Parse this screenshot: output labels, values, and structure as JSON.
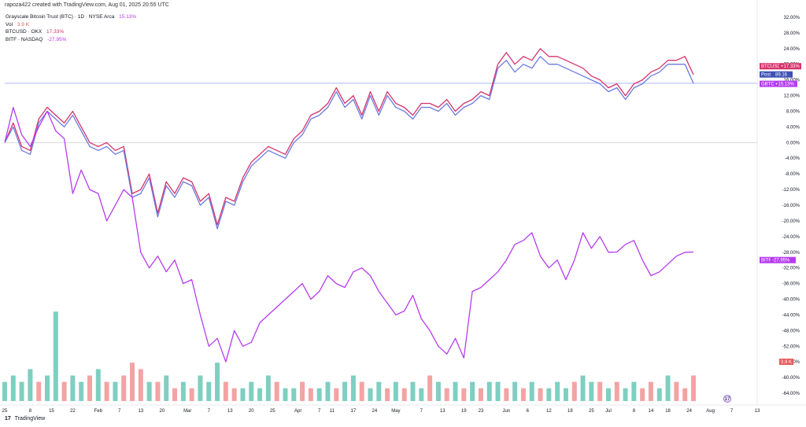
{
  "header": {
    "caption": "rapoza422 created with TradingView.com, Aug 01, 2025 20:55 UTC"
  },
  "legend": {
    "main_name": "Grayscale Bitcoin Trust (BTC) · 1D · NYSE Arca",
    "main_value": "15.13%",
    "vol_name": "Vol",
    "vol_value": "3.9 K",
    "btc_name": "BTCUSD · OKX",
    "btc_value": "17.33%",
    "bitf_name": "BITF · NASDAQ",
    "bitf_value": "-27.95%"
  },
  "badges": {
    "btcusd_label": "BTCUSD",
    "btcusd_value": "+17.33%",
    "post_label": "Post",
    "post_value": "89.16",
    "gbtc_label": "GBTC",
    "gbtc_value": "+15.13%",
    "bitf_label": "BITF",
    "bitf_value": "-27.95%",
    "vol_value": "3.9 K"
  },
  "branding": {
    "text": "TradingView",
    "mark": "17"
  },
  "colors": {
    "btcusd": "#d6336c",
    "gbtc": "#6c7be0",
    "bitf": "#b63bf0",
    "vol_up": "#7fcfc1",
    "vol_down": "#f4a3a3",
    "post_line": "#7e8cff"
  },
  "chart_data": {
    "type": "line",
    "y_axis_ticks": [
      "32.00%",
      "28.00%",
      "24.00%",
      "20.00%",
      "16.00%",
      "12.00%",
      "8.00%",
      "4.00%",
      "0.00%",
      "-4.00%",
      "-8.00%",
      "-12.00%",
      "-16.00%",
      "-20.00%",
      "-24.00%",
      "-28.00%",
      "-32.00%",
      "-36.00%",
      "-40.00%",
      "-44.00%",
      "-48.00%",
      "-52.00%",
      "-56.00%",
      "-60.00%",
      "-64.00%"
    ],
    "y_axis_values": [
      32,
      28,
      24,
      20,
      16,
      12,
      8,
      4,
      0,
      -4,
      -8,
      -12,
      -16,
      -20,
      -24,
      -28,
      -32,
      -36,
      -40,
      -44,
      -48,
      -52,
      -56,
      -60,
      -64
    ],
    "x_axis_ticks": [
      "25",
      "8",
      "15",
      "22",
      "Feb",
      "7",
      "13",
      "20",
      "Mar",
      "7",
      "13",
      "20",
      "25",
      "Apr",
      "7",
      "11",
      "17",
      "24",
      "May",
      "7",
      "13",
      "19",
      "23",
      "Jun",
      "6",
      "12",
      "18",
      "25",
      "Jul",
      "8",
      "14",
      "18",
      "24",
      "Aug",
      "7",
      "13"
    ],
    "ylim": [
      -66,
      34
    ],
    "x_index_range": [
      0,
      162
    ],
    "x_tick_index": [
      0,
      6,
      11,
      16,
      22,
      27,
      32,
      37,
      43,
      48,
      53,
      58,
      63,
      69,
      74,
      77,
      82,
      87,
      92,
      98,
      103,
      108,
      112,
      118,
      123,
      128,
      133,
      138,
      142,
      148,
      152,
      156,
      161,
      166,
      171,
      177
    ],
    "series": [
      {
        "name": "BTCUSD",
        "x": [
          0,
          2,
          4,
          6,
          8,
          10,
          12,
          14,
          16,
          18,
          20,
          22,
          24,
          26,
          28,
          30,
          32,
          34,
          36,
          38,
          40,
          42,
          44,
          46,
          48,
          50,
          52,
          54,
          56,
          58,
          60,
          62,
          64,
          66,
          68,
          70,
          72,
          74,
          76,
          78,
          80,
          82,
          84,
          86,
          88,
          90,
          92,
          94,
          96,
          98,
          100,
          102,
          104,
          106,
          108,
          110,
          112,
          114,
          116,
          118,
          120,
          122,
          124,
          126,
          128,
          130,
          132,
          134,
          136,
          138,
          140,
          142,
          144,
          146,
          148,
          150,
          152,
          154,
          156,
          158,
          160,
          162
        ],
        "values": [
          0,
          5,
          -1,
          -2,
          6,
          9,
          7,
          5,
          8,
          4,
          0,
          -1,
          0,
          -2,
          -1,
          -13,
          -12,
          -8,
          -18,
          -10,
          -13,
          -9,
          -10,
          -15,
          -13,
          -21,
          -14,
          -15,
          -9,
          -5,
          -3,
          -1,
          -2,
          -3,
          1,
          3,
          7,
          8,
          10,
          14,
          10,
          12,
          7,
          13,
          8,
          13,
          10,
          9,
          7,
          10,
          10,
          9,
          11,
          8,
          10,
          11,
          13,
          12,
          20,
          23,
          20,
          22,
          21,
          24,
          22,
          22,
          21,
          20,
          19,
          17,
          16,
          14,
          15,
          12,
          15,
          16,
          18,
          19,
          21,
          21,
          22,
          17.33
        ]
      },
      {
        "name": "GBTC",
        "x": [
          0,
          2,
          4,
          6,
          8,
          10,
          12,
          14,
          16,
          18,
          20,
          22,
          24,
          26,
          28,
          30,
          32,
          34,
          36,
          38,
          40,
          42,
          44,
          46,
          48,
          50,
          52,
          54,
          56,
          58,
          60,
          62,
          64,
          66,
          68,
          70,
          72,
          74,
          76,
          78,
          80,
          82,
          84,
          86,
          88,
          90,
          92,
          94,
          96,
          98,
          100,
          102,
          104,
          106,
          108,
          110,
          112,
          114,
          116,
          118,
          120,
          122,
          124,
          126,
          128,
          130,
          132,
          134,
          136,
          138,
          140,
          142,
          144,
          146,
          148,
          150,
          152,
          154,
          156,
          158,
          160,
          162
        ],
        "values": [
          0,
          4,
          -2,
          -3,
          5,
          8,
          6,
          4,
          7,
          3,
          -1,
          -2,
          -1,
          -3,
          -2,
          -14,
          -13,
          -9,
          -19,
          -11,
          -14,
          -10,
          -11,
          -16,
          -14,
          -22,
          -15,
          -16,
          -10,
          -6,
          -4,
          -2,
          -3,
          -4,
          0,
          2,
          6,
          7,
          9,
          13,
          9,
          11,
          6,
          12,
          7,
          12,
          9,
          8,
          6,
          9,
          9,
          8,
          10,
          7,
          9,
          10,
          12,
          11,
          19,
          21,
          18,
          20,
          19,
          22,
          20,
          20,
          19,
          18,
          17,
          16,
          15,
          13,
          14,
          11,
          14,
          15,
          17,
          18,
          20,
          20,
          20,
          15.13
        ]
      },
      {
        "name": "BITF",
        "x": [
          0,
          2,
          4,
          6,
          8,
          10,
          12,
          14,
          16,
          18,
          20,
          22,
          24,
          26,
          28,
          30,
          32,
          34,
          36,
          38,
          40,
          42,
          44,
          46,
          48,
          50,
          52,
          54,
          56,
          58,
          60,
          62,
          64,
          66,
          68,
          70,
          72,
          74,
          76,
          78,
          80,
          82,
          84,
          86,
          88,
          90,
          92,
          94,
          96,
          98,
          100,
          102,
          104,
          106,
          108,
          110,
          112,
          114,
          116,
          118,
          120,
          122,
          124,
          126,
          128,
          130,
          132,
          134,
          136,
          138,
          140,
          142,
          144,
          146,
          148,
          150,
          152,
          154,
          156,
          158,
          160,
          162
        ],
        "values": [
          0,
          9,
          2,
          -1,
          4,
          8,
          3,
          1,
          -13,
          -7,
          -12,
          -13,
          -20,
          -16,
          -12,
          -14,
          -28,
          -32,
          -29,
          -33,
          -30,
          -36,
          -35,
          -44,
          -52,
          -50,
          -56,
          -48,
          -52,
          -51,
          -46,
          -44,
          -42,
          -40,
          -38,
          -36,
          -40,
          -38,
          -34,
          -36,
          -37,
          -33,
          -32,
          -34,
          -38,
          -41,
          -44,
          -43,
          -39,
          -45,
          -48,
          -52,
          -54,
          -50,
          -55,
          -38,
          -37,
          -35,
          -33,
          -30,
          -26,
          -25,
          -23,
          -29,
          -32,
          -30,
          -35,
          -30,
          -23,
          -27,
          -24,
          -28,
          -27.95,
          -26,
          -25,
          -30,
          -34,
          -33,
          -31,
          -29,
          -28,
          -27.95
        ]
      }
    ],
    "volume": {
      "x": [
        0,
        2,
        4,
        6,
        8,
        10,
        12,
        14,
        16,
        18,
        20,
        22,
        24,
        26,
        28,
        30,
        32,
        34,
        36,
        38,
        40,
        42,
        44,
        46,
        48,
        50,
        52,
        54,
        56,
        58,
        60,
        62,
        64,
        66,
        68,
        70,
        72,
        74,
        76,
        78,
        80,
        82,
        84,
        86,
        88,
        90,
        92,
        94,
        96,
        98,
        100,
        102,
        104,
        106,
        108,
        110,
        112,
        114,
        116,
        118,
        120,
        122,
        124,
        126,
        128,
        130,
        132,
        134,
        136,
        138,
        140,
        142,
        144,
        146,
        148,
        150,
        152,
        154,
        156,
        158,
        160,
        162
      ],
      "values": [
        3,
        4,
        3,
        5,
        3,
        4,
        14,
        3,
        4,
        3,
        4,
        5,
        3,
        3,
        4,
        6,
        5,
        3,
        3,
        4,
        2,
        3,
        2,
        4,
        3,
        6,
        3,
        2,
        2,
        3,
        2,
        4,
        3,
        2,
        2,
        3,
        2,
        2,
        3,
        2,
        3,
        4,
        3,
        2,
        3,
        2,
        3,
        2,
        3,
        2,
        4,
        3,
        2,
        3,
        2,
        3,
        2,
        3,
        3,
        2,
        3,
        2,
        3,
        2,
        2,
        3,
        2,
        3,
        4,
        3,
        3,
        2,
        3,
        2,
        3,
        2,
        3,
        2,
        4,
        3,
        2,
        4
      ],
      "up": [
        1,
        1,
        1,
        1,
        0,
        1,
        1,
        0,
        1,
        1,
        0,
        1,
        0,
        1,
        0,
        0,
        0,
        1,
        0,
        1,
        0,
        1,
        0,
        1,
        1,
        1,
        0,
        0,
        1,
        1,
        1,
        1,
        0,
        1,
        1,
        0,
        0,
        1,
        1,
        0,
        1,
        1,
        0,
        1,
        1,
        0,
        1,
        0,
        1,
        1,
        0,
        1,
        0,
        1,
        0,
        1,
        0,
        1,
        1,
        0,
        1,
        0,
        1,
        0,
        1,
        1,
        1,
        0,
        1,
        1,
        0,
        1,
        0,
        1,
        1,
        0,
        0,
        1,
        1,
        0,
        0,
        0
      ]
    }
  }
}
